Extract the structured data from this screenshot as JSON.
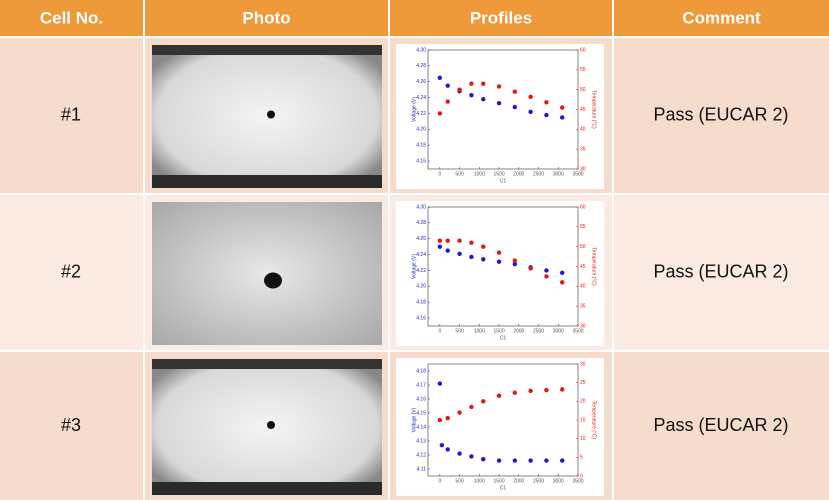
{
  "table": {
    "headers": [
      "Cell No.",
      "Photo",
      "Profiles",
      "Comment"
    ],
    "rows": [
      {
        "cell": "#1",
        "comment": "Pass (EUCAR 2)",
        "profile": {
          "x_label": "C1",
          "y_label": "Voltage (V)",
          "y2_label": "Temperature (°C)",
          "xlim": [
            -300,
            3500
          ],
          "xticks": [
            0,
            500,
            1000,
            1500,
            2000,
            2500,
            3000,
            3500
          ],
          "ylim": [
            4.15,
            4.3
          ],
          "yticks": [
            4.16,
            4.18,
            {
              "value": 4.2,
              "label": "4.20"
            },
            4.22,
            4.24,
            4.26,
            4.28,
            {
              "value": 4.3,
              "label": "4.30"
            }
          ],
          "y2lim": [
            30,
            60
          ],
          "y2ticks": [
            30,
            35,
            40,
            45,
            50,
            55,
            60
          ],
          "series": [
            {
              "name": "Voltage",
              "color": "#1a1ad6",
              "axis": "y",
              "x": [
                0,
                200,
                500,
                800,
                1100,
                1500,
                1900,
                2300,
                2700,
                3100
              ],
              "values": [
                4.265,
                4.255,
                4.248,
                4.243,
                4.238,
                4.233,
                4.228,
                4.222,
                4.218,
                4.215
              ]
            },
            {
              "name": "Temperature",
              "color": "#e01818",
              "axis": "y2",
              "x": [
                0,
                200,
                500,
                800,
                1100,
                1500,
                1900,
                2300,
                2700,
                3100
              ],
              "values": [
                44,
                47,
                50,
                51.5,
                51.5,
                50.8,
                49.5,
                48.2,
                46.8,
                45.5
              ]
            }
          ]
        }
      },
      {
        "cell": "#2",
        "comment": "Pass (EUCAR 2)",
        "profile": {
          "x_label": "C1",
          "y_label": "Voltage (V)",
          "y2_label": "Temperature (°C)",
          "xlim": [
            -300,
            3500
          ],
          "xticks": [
            0,
            500,
            1000,
            1500,
            2000,
            2500,
            3000,
            3500
          ],
          "ylim": [
            4.15,
            4.3
          ],
          "yticks": [
            4.16,
            4.18,
            {
              "value": 4.2,
              "label": "4.20"
            },
            4.22,
            4.24,
            4.26,
            4.28,
            {
              "value": 4.3,
              "label": "4.30"
            }
          ],
          "y2lim": [
            30,
            60
          ],
          "y2ticks": [
            30,
            35,
            40,
            45,
            50,
            55,
            60
          ],
          "series": [
            {
              "name": "Voltage",
              "color": "#1a1ad6",
              "axis": "y",
              "x": [
                0,
                200,
                500,
                800,
                1100,
                1500,
                1900,
                2300,
                2700,
                3100
              ],
              "values": [
                4.25,
                4.245,
                4.241,
                4.237,
                4.234,
                4.231,
                4.228,
                4.224,
                4.22,
                4.217
              ]
            },
            {
              "name": "Temperature",
              "color": "#e01818",
              "axis": "y2",
              "x": [
                0,
                200,
                500,
                800,
                1100,
                1500,
                1900,
                2300,
                2700,
                3100
              ],
              "values": [
                51.5,
                51.5,
                51.5,
                51,
                50,
                48.5,
                46.5,
                44.5,
                42.5,
                41
              ]
            }
          ]
        }
      },
      {
        "cell": "#3",
        "comment": "Pass (EUCAR 2)",
        "profile": {
          "x_label": "C1",
          "y_label": "Voltage (V)",
          "y2_label": "Temperature (°C)",
          "xlim": [
            -300,
            3500
          ],
          "xticks": [
            0,
            500,
            1000,
            1500,
            2000,
            2500,
            3000,
            3500
          ],
          "ylim": [
            4.105,
            4.185
          ],
          "yticks": [
            4.11,
            4.12,
            4.13,
            4.14,
            4.15,
            4.16,
            4.17,
            4.18
          ],
          "y2lim": [
            0,
            30
          ],
          "y2ticks": [
            0,
            5,
            10,
            15,
            20,
            25,
            30
          ],
          "series": [
            {
              "name": "Voltage",
              "color": "#1a1ad6",
              "axis": "y",
              "x": [
                0,
                50,
                200,
                500,
                800,
                1100,
                1500,
                1900,
                2300,
                2700,
                3100
              ],
              "values": [
                4.171,
                4.127,
                4.124,
                4.121,
                4.119,
                4.117,
                4.116,
                4.116,
                4.116,
                4.116,
                4.116
              ]
            },
            {
              "name": "Temperature",
              "color": "#e01818",
              "axis": "y2",
              "x": [
                0,
                200,
                500,
                800,
                1100,
                1500,
                1900,
                2300,
                2700,
                3100
              ],
              "values": [
                15,
                15.5,
                17,
                18.5,
                20,
                21.5,
                22.3,
                22.8,
                23,
                23.2
              ]
            }
          ]
        }
      }
    ]
  }
}
